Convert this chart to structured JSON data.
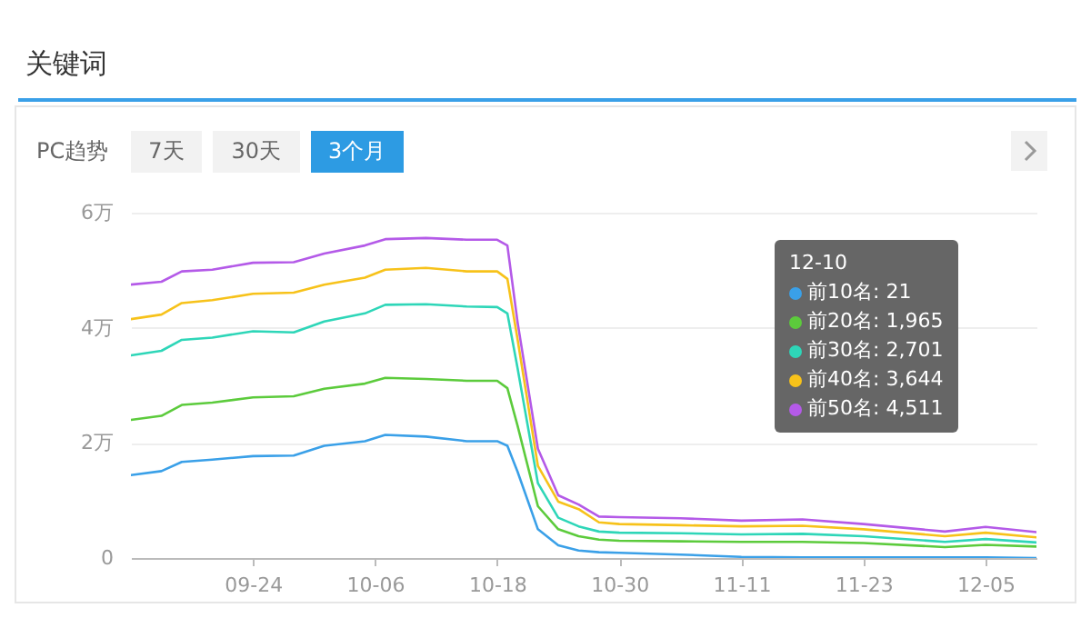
{
  "chart_data": {
    "type": "line",
    "title": "关键词",
    "annotations": [
      "PC趋势",
      "7天",
      "30天",
      "3个月",
      "12-10",
      "前10名: 21",
      "前20名: 1,965",
      "前30名: 2,701",
      "前40名: 3,644",
      "前50名: 4,511"
    ],
    "x": [
      "--09-12",
      "--09-15",
      "--09-17",
      "--09-20",
      "--09-24",
      "--09-28",
      "--10-01",
      "--10-05",
      "--10-07",
      "--10-11",
      "--10-15",
      "--10-18",
      "--10-19",
      "--10-20",
      "--10-22",
      "--10-24",
      "--10-26",
      "--10-28",
      "--10-30",
      "--11-05",
      "--11-11",
      "--11-17",
      "--11-23",
      "--12-01",
      "--12-05",
      "--12-10"
    ],
    "series": [
      {
        "color": "#3aa0e8",
        "values": [
          1.44,
          1.51,
          1.67,
          1.71,
          1.77,
          1.78,
          1.95,
          2.03,
          2.14,
          2.11,
          2.03,
          2.03,
          1.95,
          1.5,
          0.5,
          0.22,
          0.13,
          0.1,
          0.09,
          0.06,
          0.02,
          0.01,
          0.01,
          0.01,
          0.01,
          0
        ]
      },
      {
        "color": "#5ccb3c",
        "values": [
          2.4,
          2.47,
          2.66,
          2.7,
          2.79,
          2.81,
          2.94,
          3.03,
          3.13,
          3.11,
          3.08,
          3.08,
          2.95,
          2.3,
          0.9,
          0.5,
          0.38,
          0.32,
          0.3,
          0.29,
          0.28,
          0.28,
          0.26,
          0.19,
          0.23,
          0.2
        ]
      },
      {
        "color": "#2ed6b8",
        "values": [
          3.52,
          3.6,
          3.79,
          3.83,
          3.94,
          3.92,
          4.11,
          4.25,
          4.4,
          4.41,
          4.37,
          4.36,
          4.25,
          3.3,
          1.3,
          0.7,
          0.55,
          0.46,
          0.44,
          0.43,
          0.41,
          0.42,
          0.38,
          0.28,
          0.33,
          0.27
        ]
      },
      {
        "color": "#f7c21a",
        "values": [
          4.15,
          4.23,
          4.43,
          4.48,
          4.59,
          4.61,
          4.75,
          4.87,
          5.01,
          5.04,
          4.98,
          4.98,
          4.85,
          3.8,
          1.6,
          0.98,
          0.85,
          0.62,
          0.59,
          0.57,
          0.55,
          0.56,
          0.5,
          0.38,
          0.44,
          0.36
        ]
      },
      {
        "color": "#b45ae8",
        "values": [
          4.75,
          4.8,
          4.98,
          5.01,
          5.13,
          5.14,
          5.29,
          5.43,
          5.54,
          5.56,
          5.53,
          5.53,
          5.43,
          4.1,
          1.9,
          1.09,
          0.93,
          0.72,
          0.71,
          0.69,
          0.65,
          0.67,
          0.59,
          0.46,
          0.54,
          0.45
        ]
      }
    ],
    "xlim": [
      "--09-12",
      "--12-10"
    ],
    "xticks": [
      {
        "value": "--09-24",
        "label": "09-24"
      },
      {
        "value": "--10-06",
        "label": "10-06"
      },
      {
        "value": "--10-18",
        "label": "10-18"
      },
      {
        "value": "--10-30",
        "label": "10-30"
      },
      {
        "value": "--11-11",
        "label": "11-11"
      },
      {
        "value": "--11-23",
        "label": "11-23"
      },
      {
        "value": "--12-05",
        "label": "12-05"
      }
    ],
    "ylim": [
      0,
      6
    ],
    "yticks": [
      0,
      {
        "value": 2,
        "label": "2万"
      },
      {
        "value": 4,
        "label": "4万"
      },
      {
        "value": 6,
        "label": "6万"
      }
    ],
    "grid": "y",
    "marker": "none",
    "line_style": "solid"
  }
}
